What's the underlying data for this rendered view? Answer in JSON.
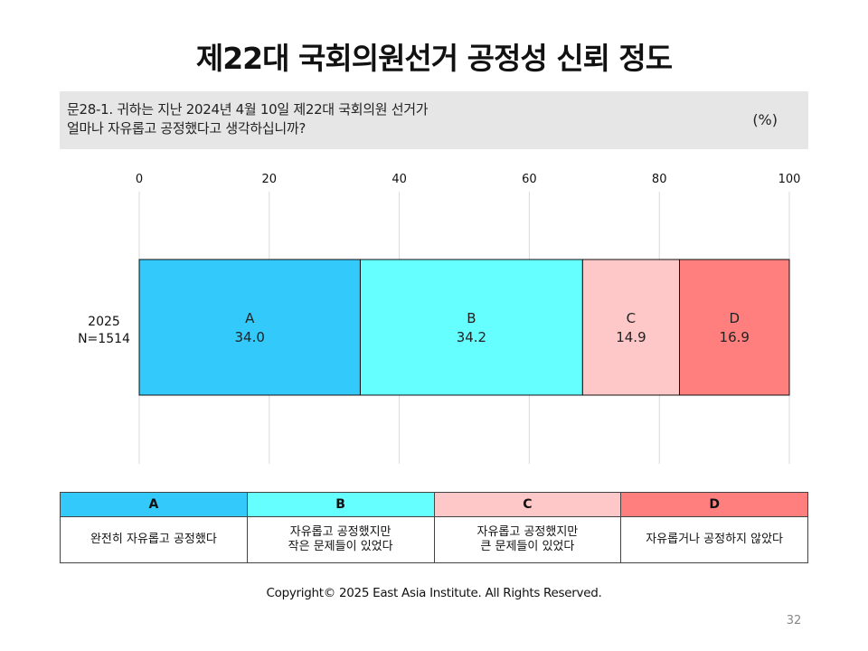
{
  "title": "제22대 국회의원선거 공정성 신뢰 정도",
  "question": {
    "line1": "문28-1. 귀하는 지난 2024년 4월 10일 제22대 국회의원 선거가",
    "line2": "얼마나 자유롭고 공정했다고 생각하십니까?",
    "unit": "(%)"
  },
  "chart_data": {
    "type": "bar",
    "orientation": "horizontal",
    "stacked": true,
    "xlim": [
      0,
      100
    ],
    "xticks": [
      0,
      20,
      40,
      60,
      80,
      100
    ],
    "grid": true,
    "categories": [
      {
        "label": "2025",
        "sublabel": "N=1514"
      }
    ],
    "series": [
      {
        "name": "A",
        "values": [
          34.0
        ],
        "color": "#33c9fb"
      },
      {
        "name": "B",
        "values": [
          34.2
        ],
        "color": "#66ffff"
      },
      {
        "name": "C",
        "values": [
          14.9
        ],
        "color": "#ffc8c8"
      },
      {
        "name": "D",
        "values": [
          16.9
        ],
        "color": "#ff7f7f"
      }
    ]
  },
  "legend": {
    "columns": [
      {
        "key": "A",
        "color": "#33c9fb",
        "lines": [
          "완전히 자유롭고 공정했다"
        ]
      },
      {
        "key": "B",
        "color": "#66ffff",
        "lines": [
          "자유롭고 공정했지만",
          "작은 문제들이 있었다"
        ]
      },
      {
        "key": "C",
        "color": "#ffc8c8",
        "lines": [
          "자유롭고 공정했지만",
          "큰 문제들이 있었다"
        ]
      },
      {
        "key": "D",
        "color": "#ff7f7f",
        "lines": [
          "자유롭거나 공정하지 않았다"
        ]
      }
    ]
  },
  "footer": {
    "copyright": "Copyright© 2025 East Asia Institute. All Rights Reserved.",
    "page_number": "32"
  }
}
